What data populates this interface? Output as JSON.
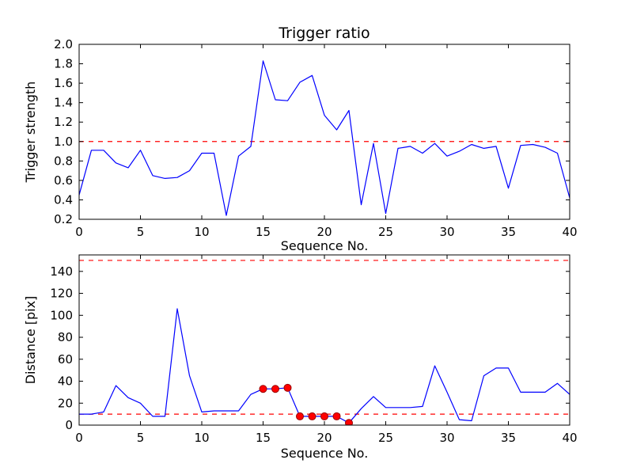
{
  "figure": {
    "background": "#ffffff",
    "axis_color": "#000000",
    "line_color": "#0000ff",
    "threshold_color": "#ff0000",
    "marker_color": "#ff0000",
    "marker_edge_color": "#990000"
  },
  "chart_data": [
    {
      "type": "line",
      "title": "Trigger ratio",
      "xlabel": "Sequence No.",
      "ylabel": "Trigger strength",
      "xlim": [
        0,
        40
      ],
      "ylim": [
        0.2,
        2.0
      ],
      "grid": false,
      "legend": "none",
      "xticks": [
        0,
        5,
        10,
        15,
        20,
        25,
        30,
        35,
        40
      ],
      "xtick_labels": [
        "0",
        "5",
        "10",
        "15",
        "20",
        "25",
        "30",
        "35",
        "40"
      ],
      "yticks": [
        0.2,
        0.4,
        0.6,
        0.8,
        1.0,
        1.2,
        1.4,
        1.6,
        1.8,
        2.0
      ],
      "ytick_labels": [
        "0.2",
        "0.4",
        "0.6",
        "0.8",
        "1.0",
        "1.2",
        "1.4",
        "1.6",
        "1.8",
        "2.0"
      ],
      "threshold_lines": [
        1.0
      ],
      "x": [
        0,
        1,
        2,
        3,
        4,
        5,
        6,
        7,
        8,
        9,
        10,
        11,
        12,
        13,
        14,
        15,
        16,
        17,
        18,
        19,
        20,
        21,
        22,
        23,
        24,
        25,
        26,
        27,
        28,
        29,
        30,
        31,
        32,
        33,
        34,
        35,
        36,
        37,
        38,
        39,
        40
      ],
      "series": [
        {
          "name": "trigger-strength",
          "color": "#0000ff",
          "values": [
            0.45,
            0.91,
            0.91,
            0.78,
            0.73,
            0.91,
            0.65,
            0.62,
            0.63,
            0.7,
            0.88,
            0.88,
            0.24,
            0.85,
            0.95,
            1.83,
            1.43,
            1.42,
            1.61,
            1.68,
            1.27,
            1.12,
            1.32,
            0.35,
            0.98,
            0.26,
            0.93,
            0.95,
            0.88,
            0.98,
            0.85,
            0.9,
            0.97,
            0.93,
            0.95,
            0.52,
            0.96,
            0.97,
            0.94,
            0.88,
            0.42
          ]
        }
      ]
    },
    {
      "type": "line",
      "title": "",
      "xlabel": "Sequence No.",
      "ylabel": "Distance [pix]",
      "xlim": [
        0,
        40
      ],
      "ylim": [
        0,
        155
      ],
      "grid": false,
      "legend": "none",
      "xticks": [
        0,
        5,
        10,
        15,
        20,
        25,
        30,
        35,
        40
      ],
      "xtick_labels": [
        "0",
        "5",
        "10",
        "15",
        "20",
        "25",
        "30",
        "35",
        "40"
      ],
      "yticks": [
        0,
        20,
        40,
        60,
        80,
        100,
        120,
        140
      ],
      "ytick_labels": [
        "0",
        "20",
        "40",
        "60",
        "80",
        "100",
        "120",
        "140"
      ],
      "threshold_lines": [
        10,
        150
      ],
      "x": [
        0,
        1,
        2,
        3,
        4,
        5,
        6,
        7,
        8,
        9,
        10,
        11,
        12,
        13,
        14,
        15,
        16,
        17,
        18,
        19,
        20,
        21,
        22,
        23,
        24,
        25,
        26,
        27,
        28,
        29,
        30,
        31,
        32,
        33,
        34,
        35,
        36,
        37,
        38,
        39,
        40
      ],
      "series": [
        {
          "name": "distance",
          "color": "#0000ff",
          "values": [
            10,
            10,
            12,
            36,
            25,
            20,
            8,
            8,
            106,
            45,
            12,
            13,
            13,
            13,
            28,
            33,
            33,
            34,
            8,
            8,
            8,
            8,
            2,
            15,
            26,
            16,
            16,
            16,
            17,
            54,
            30,
            5,
            4,
            45,
            52,
            52,
            30,
            30,
            30,
            38,
            28
          ]
        }
      ],
      "markers": {
        "style": "red-circle",
        "x": [
          15,
          16,
          17,
          18,
          19,
          20,
          21,
          22
        ],
        "y": [
          33,
          33,
          34,
          8,
          8,
          8,
          8,
          2
        ]
      }
    }
  ]
}
